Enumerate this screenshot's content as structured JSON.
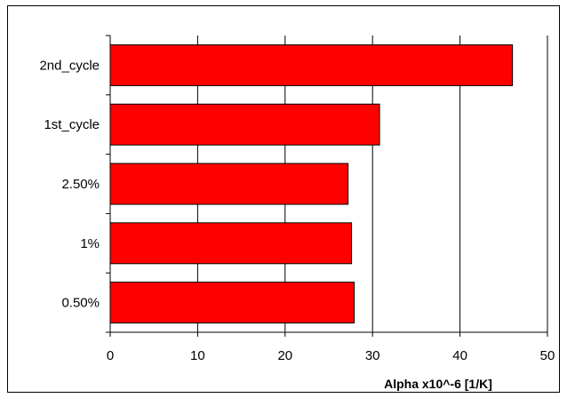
{
  "chart_data": {
    "type": "bar",
    "orientation": "horizontal",
    "categories": [
      "2nd_cycle",
      "1st_cycle",
      "2.50%",
      "1%",
      "0.50%"
    ],
    "values": [
      46,
      30.8,
      27.2,
      27.6,
      27.9
    ],
    "xlabel": "Alpha x10^-6 [1/K]",
    "ylabel": "",
    "xlim": [
      0,
      50
    ],
    "x_ticks": [
      0,
      10,
      20,
      30,
      40,
      50
    ],
    "x_tick_labels": [
      "0",
      "10",
      "20",
      "30",
      "40",
      "50"
    ],
    "grid": "vertical",
    "legend": "none",
    "colors": {
      "bar": "#ff0000",
      "bar_edge": "#000000",
      "grid": "#000000"
    }
  }
}
